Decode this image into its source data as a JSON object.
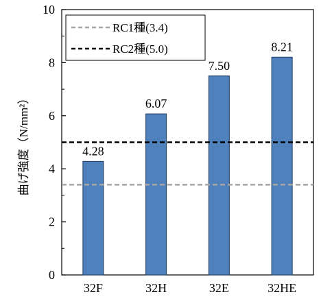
{
  "chart_data": {
    "type": "bar",
    "categories": [
      "32F",
      "32H",
      "32E",
      "32HE"
    ],
    "values": [
      4.28,
      6.07,
      7.5,
      8.21
    ],
    "data_labels": [
      "4.28",
      "6.07",
      "7.50",
      "8.21"
    ],
    "ylabel": "曲げ強度（N/mm²）",
    "ylim": [
      0,
      10
    ],
    "yticks": [
      0,
      2,
      4,
      6,
      8,
      10
    ],
    "grid": false,
    "bar_color": "#4F81BD",
    "bar_edge_color": "#1F3B60",
    "reference_lines": [
      {
        "name": "RC1種(3.4)",
        "value": 3.4,
        "color": "#A6A6A6",
        "style": "dashed"
      },
      {
        "name": "RC2種(5.0)",
        "value": 5.0,
        "color": "#000000",
        "style": "dashed"
      }
    ],
    "legend_position": "top-left"
  }
}
